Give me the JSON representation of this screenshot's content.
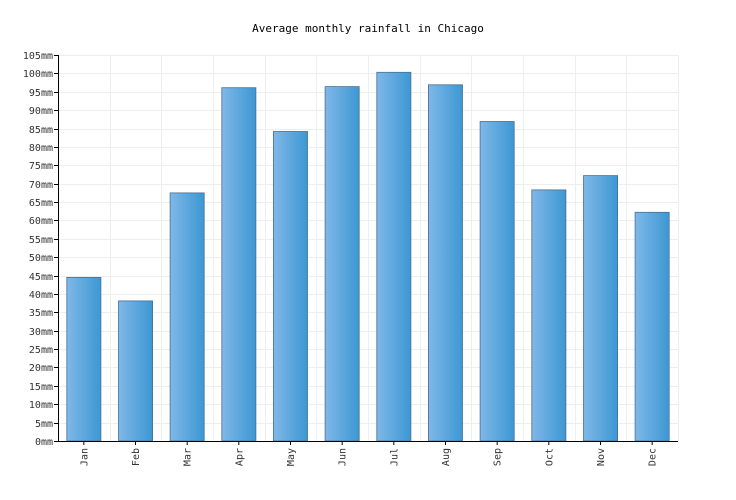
{
  "chart_data": {
    "type": "bar",
    "title": "Average monthly rainfall in Chicago",
    "xlabel": "",
    "ylabel": "",
    "categories": [
      "Jan",
      "Feb",
      "Mar",
      "Apr",
      "May",
      "Jun",
      "Jul",
      "Aug",
      "Sep",
      "Oct",
      "Nov",
      "Dec"
    ],
    "values": [
      44.5,
      38.1,
      67.5,
      96.1,
      84.2,
      96.4,
      100.3,
      96.9,
      86.9,
      68.3,
      72.2,
      62.2
    ],
    "ylim": [
      0,
      105
    ],
    "ytick_step": 5,
    "ytick_labels": [
      "0mm",
      "5mm",
      "10mm",
      "15mm",
      "20mm",
      "25mm",
      "30mm",
      "35mm",
      "40mm",
      "45mm",
      "50mm",
      "55mm",
      "60mm",
      "65mm",
      "70mm",
      "75mm",
      "80mm",
      "85mm",
      "90mm",
      "95mm",
      "100mm",
      "105mm"
    ],
    "grid": true,
    "legend": "none",
    "bar_color_light": "#7fb8e8",
    "bar_color_dark": "#3d97d3",
    "bar_stroke": "#4a6f8f"
  }
}
